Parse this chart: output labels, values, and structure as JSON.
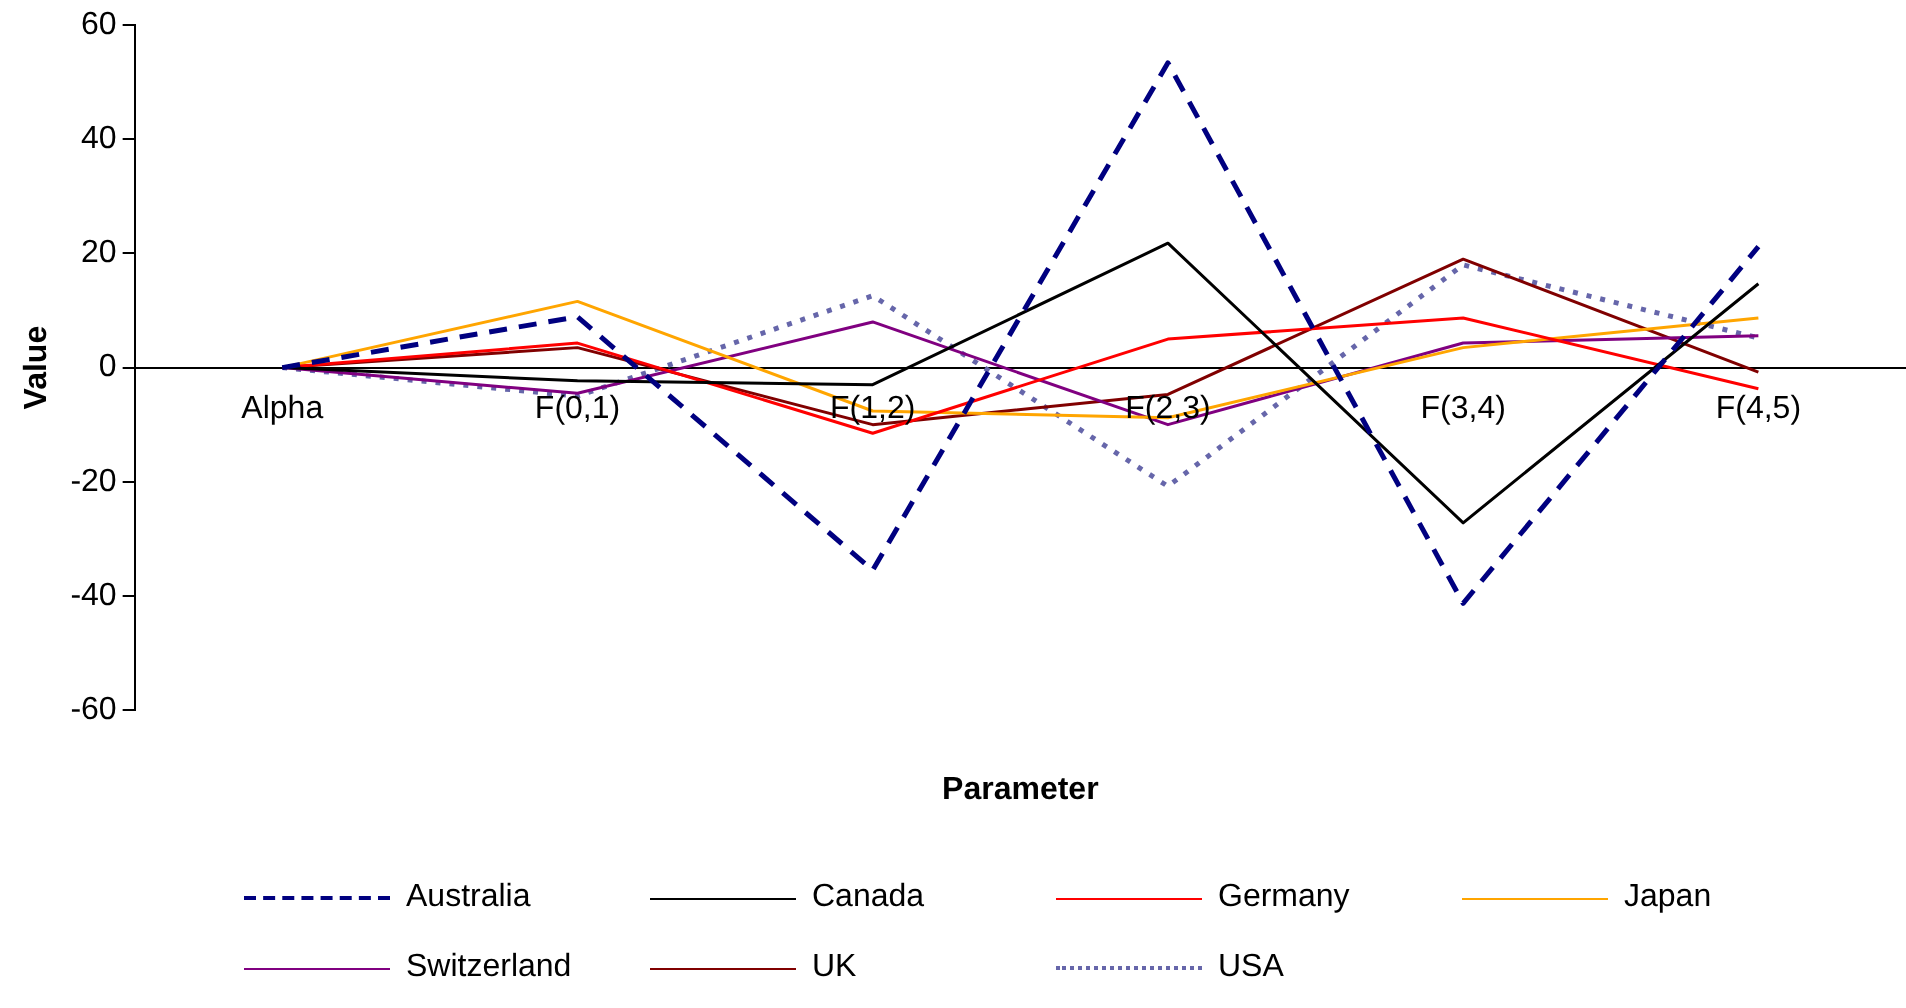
{
  "chart_data": {
    "type": "line",
    "xlabel": "Parameter",
    "ylabel": "Value",
    "categories": [
      "Alpha",
      "F(0,1)",
      "F(1,2)",
      "F(2,3)",
      "F(3,4)",
      "F(4,5)"
    ],
    "ylim": [
      -60,
      60
    ],
    "yticks": [
      -60,
      -40,
      -20,
      0,
      20,
      40,
      60
    ],
    "grid": false,
    "legend": "bottom",
    "marker": "none",
    "series": [
      {
        "name": "Australia",
        "color": "#000080",
        "line_style": "dashed",
        "values": [
          0,
          8.9,
          -35.5,
          53.4,
          -41.3,
          21.2
        ]
      },
      {
        "name": "Canada",
        "color": "#000000",
        "line_style": "solid",
        "values": [
          0,
          -2.3,
          -3,
          21.8,
          -27.2,
          14.7
        ]
      },
      {
        "name": "Germany",
        "color": "#ff0000",
        "line_style": "solid",
        "values": [
          0,
          4.3,
          -11.5,
          5,
          8.7,
          -3.7
        ]
      },
      {
        "name": "Japan",
        "color": "#ffa500",
        "line_style": "solid",
        "values": [
          0,
          11.6,
          -7.6,
          -8.8,
          3.5,
          8.7
        ]
      },
      {
        "name": "Switzerland",
        "color": "#800080",
        "line_style": "solid",
        "values": [
          0,
          -4.5,
          8,
          -10,
          4.3,
          5.6
        ]
      },
      {
        "name": "UK",
        "color": "#800000",
        "line_style": "solid",
        "values": [
          0,
          3.5,
          -10,
          -4.7,
          19,
          -0.8
        ]
      },
      {
        "name": "USA",
        "color": "#6666aa",
        "line_style": "dotted",
        "values": [
          0,
          -5,
          12.6,
          -20.8,
          18,
          5.2
        ]
      }
    ]
  }
}
